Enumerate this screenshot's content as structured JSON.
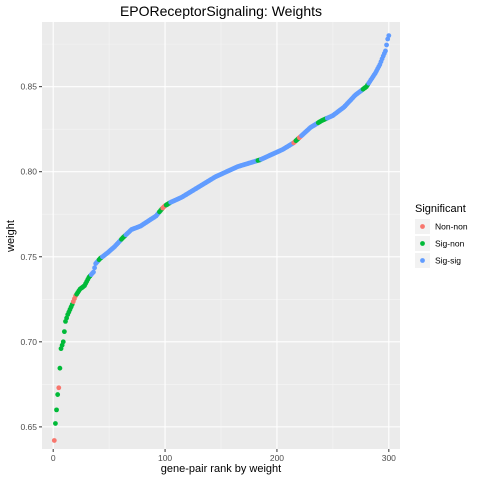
{
  "chart_data": {
    "type": "scatter",
    "title": "EPOReceptorSignaling: Weights",
    "xlabel": "gene-pair rank by weight",
    "ylabel": "weight",
    "xlim": [
      -10,
      310
    ],
    "ylim": [
      0.637,
      0.888
    ],
    "x_ticks": [
      0,
      100,
      200,
      300
    ],
    "x_tick_labels": [
      "0",
      "100",
      "200",
      "300"
    ],
    "y_ticks": [
      0.65,
      0.7,
      0.75,
      0.8,
      0.85
    ],
    "y_tick_labels": [
      "0.65",
      "0.70",
      "0.75",
      "0.80",
      "0.85"
    ],
    "grid": true,
    "legend": {
      "title": "Significant",
      "position": "right",
      "entries": [
        {
          "label": "Non-non",
          "color": "#F8766D"
        },
        {
          "label": "Sig-non",
          "color": "#00BA38"
        },
        {
          "label": "Sig-sig",
          "color": "#619CFF"
        }
      ]
    },
    "curve_anchors": {
      "x": [
        1,
        2,
        3,
        4,
        5,
        7,
        9,
        11,
        13,
        15,
        17,
        20,
        24,
        28,
        32,
        36,
        38,
        42,
        48,
        55,
        62,
        70,
        78,
        85,
        92,
        97,
        100,
        105,
        115,
        125,
        135,
        145,
        155,
        165,
        175,
        185,
        195,
        205,
        215,
        220,
        230,
        240,
        250,
        260,
        270,
        280,
        288,
        292,
        295,
        297,
        299,
        300
      ],
      "y": [
        0.642,
        0.652,
        0.66,
        0.669,
        0.673,
        0.696,
        0.7,
        0.712,
        0.716,
        0.719,
        0.722,
        0.727,
        0.731,
        0.733,
        0.738,
        0.741,
        0.746,
        0.749,
        0.752,
        0.756,
        0.761,
        0.766,
        0.768,
        0.771,
        0.774,
        0.778,
        0.78,
        0.782,
        0.785,
        0.789,
        0.793,
        0.797,
        0.8,
        0.803,
        0.805,
        0.807,
        0.81,
        0.813,
        0.817,
        0.82,
        0.826,
        0.83,
        0.833,
        0.838,
        0.845,
        0.85,
        0.858,
        0.863,
        0.868,
        0.871,
        0.878,
        0.88
      ]
    },
    "category_ranges": [
      {
        "from": 1,
        "to": 1,
        "category": "Non-non"
      },
      {
        "from": 2,
        "to": 4,
        "category": "Sig-non"
      },
      {
        "from": 5,
        "to": 5,
        "category": "Non-non"
      },
      {
        "from": 6,
        "to": 17,
        "category": "Sig-non"
      },
      {
        "from": 18,
        "to": 20,
        "category": "Non-non"
      },
      {
        "from": 21,
        "to": 33,
        "category": "Sig-non"
      },
      {
        "from": 34,
        "to": 40,
        "category": "Sig-sig"
      },
      {
        "from": 41,
        "to": 43,
        "category": "Sig-non"
      },
      {
        "from": 44,
        "to": 60,
        "category": "Sig-sig"
      },
      {
        "from": 61,
        "to": 64,
        "category": "Sig-non"
      },
      {
        "from": 65,
        "to": 94,
        "category": "Sig-sig"
      },
      {
        "from": 95,
        "to": 97,
        "category": "Sig-non"
      },
      {
        "from": 98,
        "to": 100,
        "category": "Non-non"
      },
      {
        "from": 101,
        "to": 104,
        "category": "Sig-non"
      },
      {
        "from": 105,
        "to": 182,
        "category": "Sig-sig"
      },
      {
        "from": 183,
        "to": 185,
        "category": "Sig-non"
      },
      {
        "from": 186,
        "to": 214,
        "category": "Sig-sig"
      },
      {
        "from": 215,
        "to": 216,
        "category": "Non-non"
      },
      {
        "from": 217,
        "to": 219,
        "category": "Sig-non"
      },
      {
        "from": 220,
        "to": 221,
        "category": "Non-non"
      },
      {
        "from": 222,
        "to": 236,
        "category": "Sig-sig"
      },
      {
        "from": 237,
        "to": 244,
        "category": "Sig-non"
      },
      {
        "from": 245,
        "to": 276,
        "category": "Sig-sig"
      },
      {
        "from": 277,
        "to": 281,
        "category": "Sig-non"
      },
      {
        "from": 282,
        "to": 300,
        "category": "Sig-sig"
      }
    ],
    "n_points": 300
  }
}
